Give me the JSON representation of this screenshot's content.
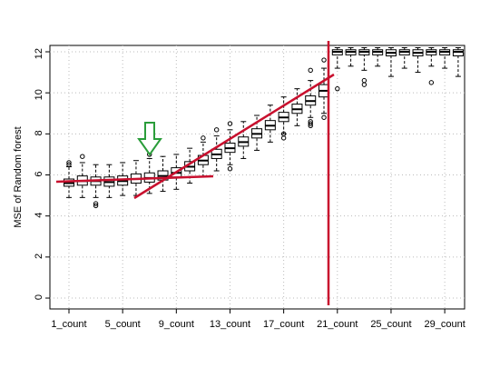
{
  "chart_data": {
    "type": "boxplot",
    "y_label": "MSE of Random forest",
    "categories": [
      "1_count",
      null,
      null,
      null,
      "5_count",
      null,
      null,
      null,
      "9_count",
      null,
      null,
      null,
      "13_count",
      null,
      null,
      null,
      "17_count",
      null,
      null,
      null,
      "21_count",
      null,
      null,
      null,
      "25_count",
      null,
      null,
      null,
      "29_count",
      null
    ],
    "boxes": [
      {
        "min": 4.9,
        "q1": 5.45,
        "median": 5.6,
        "q3": 5.8,
        "max": 6.4,
        "outliers": [
          6.6,
          6.5
        ]
      },
      {
        "min": 4.9,
        "q1": 5.5,
        "median": 5.7,
        "q3": 5.95,
        "max": 6.6,
        "outliers": [
          6.9
        ]
      },
      {
        "min": 4.9,
        "q1": 5.5,
        "median": 5.7,
        "q3": 5.9,
        "max": 6.5,
        "outliers": [
          4.5,
          4.6
        ]
      },
      {
        "min": 4.9,
        "q1": 5.45,
        "median": 5.65,
        "q3": 5.9,
        "max": 6.5,
        "outliers": []
      },
      {
        "min": 5.0,
        "q1": 5.5,
        "median": 5.7,
        "q3": 5.95,
        "max": 6.6,
        "outliers": []
      },
      {
        "min": 5.0,
        "q1": 5.6,
        "median": 5.8,
        "q3": 6.05,
        "max": 6.7,
        "outliers": []
      },
      {
        "min": 5.1,
        "q1": 5.65,
        "median": 5.85,
        "q3": 6.1,
        "max": 6.8,
        "outliers": [
          7.0
        ]
      },
      {
        "min": 5.2,
        "q1": 5.75,
        "median": 5.95,
        "q3": 6.2,
        "max": 6.9,
        "outliers": []
      },
      {
        "min": 5.3,
        "q1": 5.9,
        "median": 6.1,
        "q3": 6.35,
        "max": 7.0,
        "outliers": []
      },
      {
        "min": 5.6,
        "q1": 6.2,
        "median": 6.4,
        "q3": 6.65,
        "max": 7.3,
        "outliers": []
      },
      {
        "min": 5.9,
        "q1": 6.5,
        "median": 6.7,
        "q3": 6.95,
        "max": 7.6,
        "outliers": [
          7.8
        ]
      },
      {
        "min": 6.2,
        "q1": 6.8,
        "median": 7.0,
        "q3": 7.25,
        "max": 7.9,
        "outliers": [
          8.2
        ]
      },
      {
        "min": 6.5,
        "q1": 7.1,
        "median": 7.3,
        "q3": 7.55,
        "max": 8.2,
        "outliers": [
          6.3,
          8.5
        ]
      },
      {
        "min": 6.8,
        "q1": 7.4,
        "median": 7.6,
        "q3": 7.85,
        "max": 8.6,
        "outliers": []
      },
      {
        "min": 7.2,
        "q1": 7.8,
        "median": 8.0,
        "q3": 8.25,
        "max": 8.9,
        "outliers": []
      },
      {
        "min": 7.6,
        "q1": 8.2,
        "median": 8.4,
        "q3": 8.65,
        "max": 9.4,
        "outliers": []
      },
      {
        "min": 8.0,
        "q1": 8.6,
        "median": 8.8,
        "q3": 9.05,
        "max": 9.8,
        "outliers": [
          7.8,
          8.0
        ]
      },
      {
        "min": 8.4,
        "q1": 9.0,
        "median": 9.2,
        "q3": 9.45,
        "max": 10.2,
        "outliers": []
      },
      {
        "min": 8.8,
        "q1": 9.4,
        "median": 9.6,
        "q3": 9.85,
        "max": 10.6,
        "outliers": [
          8.4,
          8.5,
          8.6,
          11.1
        ]
      },
      {
        "min": 9.0,
        "q1": 9.8,
        "median": 10.1,
        "q3": 10.4,
        "max": 11.2,
        "outliers": [
          8.8,
          11.6
        ]
      },
      {
        "min": 11.2,
        "q1": 11.85,
        "median": 12.0,
        "q3": 12.1,
        "max": 12.2,
        "outliers": [
          10.2
        ]
      },
      {
        "min": 11.3,
        "q1": 11.85,
        "median": 12.0,
        "q3": 12.1,
        "max": 12.2,
        "outliers": []
      },
      {
        "min": 11.1,
        "q1": 11.85,
        "median": 12.0,
        "q3": 12.1,
        "max": 12.2,
        "outliers": [
          10.6,
          10.4
        ]
      },
      {
        "min": 11.3,
        "q1": 11.85,
        "median": 12.0,
        "q3": 12.1,
        "max": 12.2,
        "outliers": []
      },
      {
        "min": 10.8,
        "q1": 11.8,
        "median": 11.95,
        "q3": 12.1,
        "max": 12.2,
        "outliers": []
      },
      {
        "min": 11.2,
        "q1": 11.85,
        "median": 12.0,
        "q3": 12.1,
        "max": 12.2,
        "outliers": []
      },
      {
        "min": 11.0,
        "q1": 11.8,
        "median": 11.95,
        "q3": 12.1,
        "max": 12.2,
        "outliers": []
      },
      {
        "min": 11.3,
        "q1": 11.85,
        "median": 12.0,
        "q3": 12.1,
        "max": 12.2,
        "outliers": [
          10.5
        ]
      },
      {
        "min": 11.2,
        "q1": 11.85,
        "median": 12.0,
        "q3": 12.1,
        "max": 12.2,
        "outliers": []
      },
      {
        "min": 10.8,
        "q1": 11.8,
        "median": 12.0,
        "q3": 12.1,
        "max": 12.2,
        "outliers": []
      }
    ],
    "ylim": [
      -0.53,
      12.31
    ],
    "yticks": [
      0,
      2,
      4,
      6,
      8,
      10,
      12
    ],
    "grid": true
  }
}
